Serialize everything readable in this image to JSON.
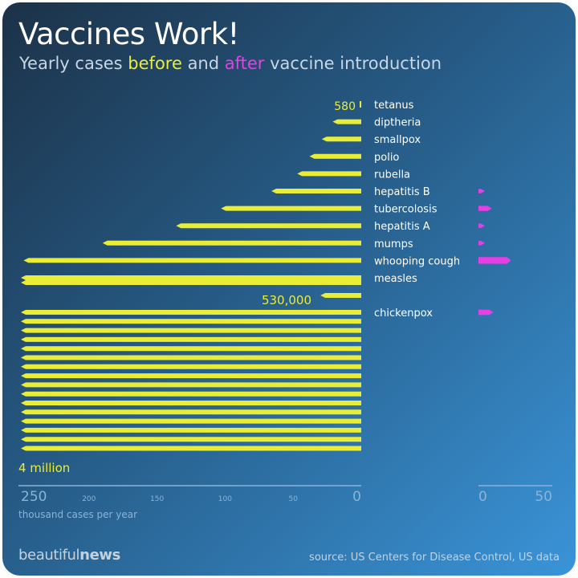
{
  "header": {
    "title": "Vaccines Work!",
    "subtitle_pre": "Yearly cases ",
    "subtitle_before": "before",
    "subtitle_mid": " and ",
    "subtitle_after": "after",
    "subtitle_post": " vaccine introduction"
  },
  "chart_data": {
    "type": "bar",
    "orientation": "horizontal",
    "xlabel": "thousand cases per year",
    "unit": "thousand cases per year",
    "categories": [
      "tetanus",
      "diptheria",
      "smallpox",
      "polio",
      "rubella",
      "hepatitis B",
      "tubercolosis",
      "hepatitis A",
      "mumps",
      "whooping cough",
      "measles",
      "chickenpox"
    ],
    "series": [
      {
        "name": "before",
        "color": "#eaed36",
        "values": [
          0.58,
          21,
          29,
          38,
          47,
          66,
          103,
          136,
          190,
          248,
          530,
          4000
        ]
      },
      {
        "name": "after",
        "color": "#e83ee6",
        "values": [
          0.05,
          0.01,
          0,
          0.02,
          0.01,
          3,
          9,
          3,
          2,
          22,
          0.1,
          10
        ]
      }
    ],
    "before_axis": {
      "xlim": [
        0,
        250
      ],
      "reversed": true,
      "ticks": [
        {
          "v": 250,
          "label": "250"
        },
        {
          "v": 200,
          "label": "200"
        },
        {
          "v": 150,
          "label": "150"
        },
        {
          "v": 100,
          "label": "100"
        },
        {
          "v": 50,
          "label": "50"
        },
        {
          "v": 0,
          "label": "0"
        }
      ]
    },
    "after_axis": {
      "xlim": [
        0,
        50
      ],
      "ticks": [
        {
          "v": 0,
          "label": "0"
        },
        {
          "v": 50,
          "label": "50"
        }
      ]
    },
    "annotations": [
      "580",
      "530,000",
      "4 million"
    ],
    "colors": {
      "before": "#eaed36",
      "after": "#e83ee6",
      "label": "#ffffff",
      "axis": "#8ab4d8"
    }
  },
  "footer": {
    "brand_light": "beautiful",
    "brand_bold": "news",
    "source": "source: US Centers for Disease Control, US data"
  }
}
